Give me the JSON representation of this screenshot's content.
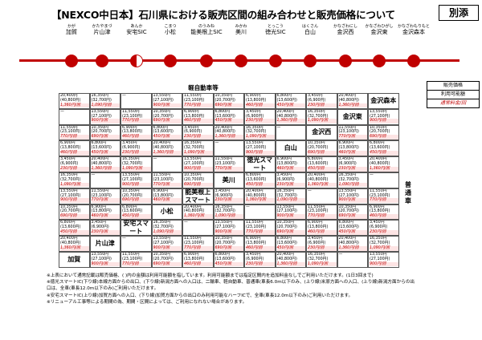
{
  "header": {
    "title": "【NEXCO中日本】石川県における販売区間の組み合わせと販売価格について",
    "badge": "別添"
  },
  "route": {
    "stations": [
      {
        "kana": "かが",
        "name": "加賀"
      },
      {
        "kana": "かたやまづ",
        "name": "片山津"
      },
      {
        "kana": "あんか",
        "name": "安宅SIC"
      },
      {
        "kana": "こまつ",
        "name": "小松"
      },
      {
        "kana": "のうみね",
        "name": "能美根上SIC"
      },
      {
        "kana": "みかわ",
        "name": "美川"
      },
      {
        "kana": "とっこう",
        "name": "徳光SIC"
      },
      {
        "kana": "はくさん",
        "name": "白山"
      },
      {
        "kana": "かなざわにし",
        "name": "金沢西"
      },
      {
        "kana": "かなざわひがし",
        "name": "金沢東"
      },
      {
        "kana": "かなざわもりもと",
        "name": "金沢森本"
      }
    ]
  },
  "legend": {
    "price": "販売価格",
    "usage": "利用可能額",
    "normal": "通常料金/回"
  },
  "table": {
    "header": "軽自動車等",
    "side_label": "普通車",
    "diag_labels": [
      "金沢森本",
      "金沢東",
      "金沢西",
      "白山",
      "徳光スマート",
      "美川",
      "能美根上スマート",
      "小松",
      "安宅スマート",
      "片山津",
      "加賀"
    ],
    "dash": "—",
    "cells": [
      [
        "20,400円",
        "16,350円",
        "—",
        "13,550円",
        "11,550円",
        "10,350円",
        "6,900円",
        "6,800円",
        "3,450円"
      ],
      [
        "(40,800円)",
        "(32,700円)",
        "",
        "(27,100円)",
        "(23,100円)",
        "(20,700円)",
        "(13,800円)",
        "(13,600円)",
        "(6,900円)"
      ],
      [
        "1,360円/回",
        "1,090円/回",
        "",
        "900円/回",
        "770円/回",
        "690円/回",
        "460円/回",
        "450円/回",
        "230円/回"
      ]
    ]
  },
  "notes": [
    "※上表において通常記載は販売価格、(  )内の金額は利用可能額を指しています。利用可能額までは指定区間内を追加料金なしでご利用いただけます。(1日3回まで)",
    "※徳光スマートIC(下り線)本線方面からの出口、(下り線)新潟方面への入口は、二輪車、軽自動車、普通車(車長6.0m以下のみ、(上り線)米原方面への入口、(上り線)新潟方面からの出",
    "口は、全車(車長12.0m以下のみ)ご利用いただけます。",
    "※安宅スマートIC(上り線)加賀方面への入口、(下り線)加賀方面からの出口のみ利用可能なハーフICで、全車(車長12.0m以下のみ)ご利用いただけます。",
    "※リニューアル工事等による期間の為、期間・区間によっては、ご利用になれない場合があります。"
  ]
}
